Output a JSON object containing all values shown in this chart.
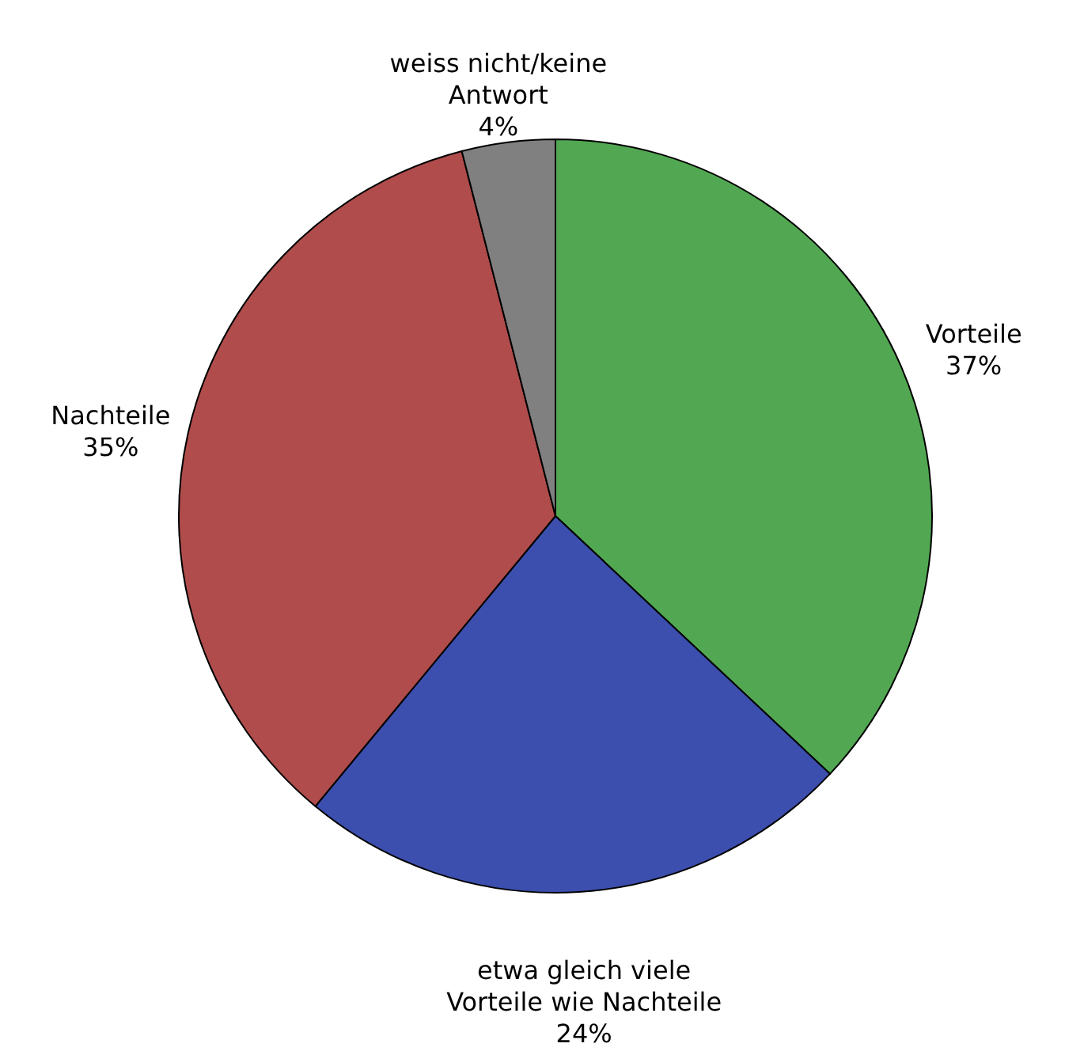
{
  "chart_data": {
    "type": "pie",
    "categories": [
      "Vorteile",
      "etwa gleich viele Vorteile wie Nachteile",
      "Nachteile",
      "weiss nicht/keine Antwort"
    ],
    "values": [
      37,
      24,
      35,
      4
    ],
    "value_labels": [
      "37%",
      "24%",
      "35%",
      "4%"
    ],
    "colors": [
      "#52a852",
      "#3c4fae",
      "#b04c4c",
      "#808080"
    ]
  }
}
